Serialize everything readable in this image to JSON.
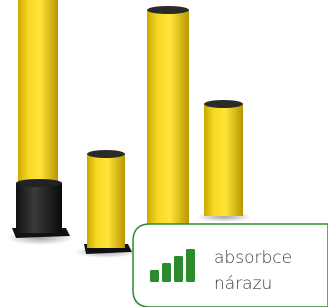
{
  "badge": {
    "lines": [
      "absorbce",
      "nárazu"
    ]
  }
}
